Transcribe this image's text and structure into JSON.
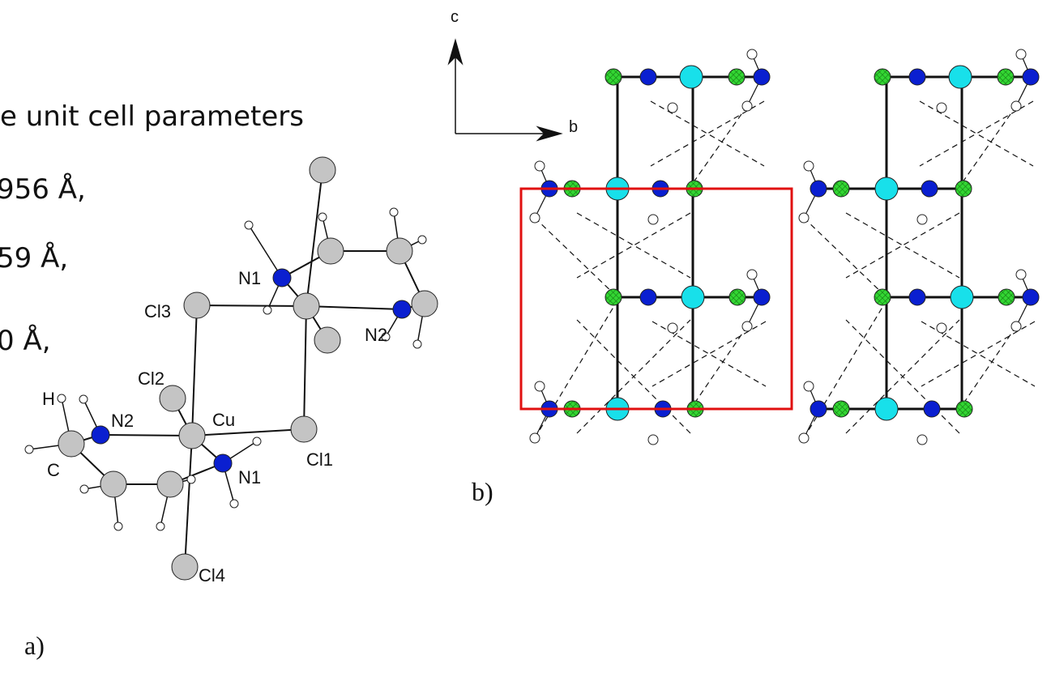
{
  "intro_lines": [
    "e unit cell parameters",
    "956 Å,",
    "59 Å,",
    "0 Å,"
  ],
  "panel_a": {
    "caption": "a)",
    "atom_labels": [
      "N1",
      "Cl3",
      "N2",
      "Cl2",
      "H",
      "N2",
      "Cu",
      "C",
      "N1",
      "Cl1",
      "Cl4"
    ]
  },
  "panel_b": {
    "caption": "b)",
    "axis_labels": [
      "c",
      "b"
    ]
  }
}
